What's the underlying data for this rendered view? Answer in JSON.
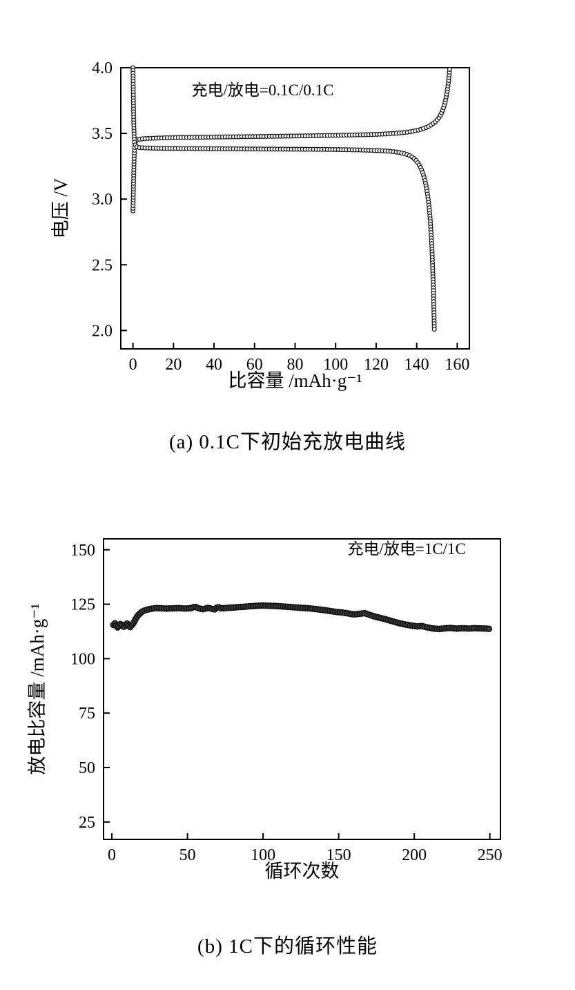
{
  "page": {
    "background": "#ffffff",
    "text_color": "#000000"
  },
  "chart_data": [
    {
      "id": "chart-a",
      "type": "scatter",
      "title": "",
      "caption": "(a) 0.1C下初始充放电曲线",
      "annotation": {
        "text": "充电/放电=0.1C/0.1C",
        "x": 64,
        "y": 3.79
      },
      "xlabel": "比容量  /mAh·g⁻¹",
      "ylabel": "电压 /V",
      "xlim": [
        -6,
        166
      ],
      "ylim": [
        1.86,
        4.0
      ],
      "grid": false,
      "legend": "none",
      "axis_color": "#000000",
      "xticks": {
        "values": [
          0,
          20,
          40,
          60,
          80,
          100,
          120,
          140,
          160
        ],
        "labels": [
          "0",
          "20",
          "40",
          "60",
          "80",
          "100",
          "120",
          "140",
          "160"
        ]
      },
      "yticks": {
        "values": [
          2.0,
          2.5,
          3.0,
          3.5,
          4.0
        ],
        "labels": [
          "2.0",
          "2.5",
          "3.0",
          "3.5",
          "4.0"
        ]
      },
      "series": [
        {
          "name": "charge-0.1C",
          "marker": "open-circle",
          "color": "#161616",
          "marker_fill": "#ffffff",
          "points": [
            [
              0,
              2.91
            ],
            [
              0.2,
              3.06
            ],
            [
              0.4,
              3.2
            ],
            [
              0.6,
              3.32
            ],
            [
              0.9,
              3.4
            ],
            [
              1.3,
              3.44
            ],
            [
              2,
              3.452
            ],
            [
              4,
              3.458
            ],
            [
              8,
              3.462
            ],
            [
              15,
              3.466
            ],
            [
              25,
              3.469
            ],
            [
              35,
              3.471
            ],
            [
              45,
              3.473
            ],
            [
              55,
              3.475
            ],
            [
              65,
              3.477
            ],
            [
              75,
              3.479
            ],
            [
              85,
              3.481
            ],
            [
              95,
              3.484
            ],
            [
              105,
              3.487
            ],
            [
              115,
              3.49
            ],
            [
              122,
              3.494
            ],
            [
              128,
              3.499
            ],
            [
              133,
              3.505
            ],
            [
              137,
              3.513
            ],
            [
              140,
              3.522
            ],
            [
              143,
              3.535
            ],
            [
              145.5,
              3.55
            ],
            [
              147.5,
              3.568
            ],
            [
              149.5,
              3.592
            ],
            [
              151,
              3.62
            ],
            [
              152.3,
              3.655
            ],
            [
              153.4,
              3.7
            ],
            [
              154.3,
              3.755
            ],
            [
              155,
              3.815
            ],
            [
              155.6,
              3.88
            ],
            [
              156,
              3.94
            ],
            [
              156.3,
              4.0
            ]
          ]
        },
        {
          "name": "discharge-0.1C",
          "marker": "open-circle",
          "color": "#161616",
          "marker_fill": "#ffffff",
          "points": [
            [
              0,
              4.0
            ],
            [
              0.1,
              3.88
            ],
            [
              0.25,
              3.72
            ],
            [
              0.4,
              3.58
            ],
            [
              0.6,
              3.47
            ],
            [
              0.9,
              3.42
            ],
            [
              1.5,
              3.4
            ],
            [
              3,
              3.392
            ],
            [
              8,
              3.388
            ],
            [
              15,
              3.386
            ],
            [
              25,
              3.385
            ],
            [
              35,
              3.384
            ],
            [
              45,
              3.383
            ],
            [
              55,
              3.382
            ],
            [
              65,
              3.381
            ],
            [
              75,
              3.38
            ],
            [
              85,
              3.379
            ],
            [
              95,
              3.378
            ],
            [
              105,
              3.376
            ],
            [
              112,
              3.374
            ],
            [
              118,
              3.371
            ],
            [
              124,
              3.367
            ],
            [
              128,
              3.362
            ],
            [
              131,
              3.356
            ],
            [
              134,
              3.346
            ],
            [
              136,
              3.335
            ],
            [
              138,
              3.318
            ],
            [
              139.5,
              3.298
            ],
            [
              141,
              3.268
            ],
            [
              142.2,
              3.232
            ],
            [
              143.2,
              3.19
            ],
            [
              144.1,
              3.14
            ],
            [
              144.9,
              3.08
            ],
            [
              145.6,
              3.01
            ],
            [
              146.2,
              2.93
            ],
            [
              146.7,
              2.84
            ],
            [
              147.1,
              2.74
            ],
            [
              147.5,
              2.63
            ],
            [
              147.8,
              2.51
            ],
            [
              148.1,
              2.38
            ],
            [
              148.35,
              2.25
            ],
            [
              148.55,
              2.12
            ],
            [
              148.7,
              2.0
            ]
          ]
        }
      ]
    },
    {
      "id": "chart-b",
      "type": "scatter",
      "title": "",
      "caption": "(b) 1C下的循环性能",
      "annotation": {
        "text": "充电/放电=1C/1C",
        "x": 195,
        "y": 148
      },
      "xlabel": "循环次数",
      "ylabel": "放电比容量  /mAh·g⁻¹",
      "xlim": [
        -5.5,
        257
      ],
      "ylim": [
        17,
        155
      ],
      "grid": false,
      "legend": "none",
      "axis_color": "#000000",
      "xticks": {
        "values": [
          0,
          50,
          100,
          150,
          200,
          250
        ],
        "labels": [
          "0",
          "50",
          "100",
          "150",
          "200",
          "250"
        ]
      },
      "yticks": {
        "values": [
          25,
          50,
          75,
          100,
          125,
          150
        ],
        "labels": [
          "25",
          "50",
          "75",
          "100",
          "125",
          "150"
        ]
      },
      "series": [
        {
          "name": "discharge-capacity-1C",
          "marker": "open-circle",
          "color": "#111111",
          "marker_fill": "#3a3a3a",
          "points": [
            [
              1,
              115.5
            ],
            [
              2,
              116.3
            ],
            [
              3,
              114.8
            ],
            [
              4,
              114.2
            ],
            [
              5,
              115.6
            ],
            [
              6,
              116.0
            ],
            [
              7,
              115.2
            ],
            [
              8,
              114.6
            ],
            [
              9,
              115.8
            ],
            [
              10,
              116.2
            ],
            [
              11,
              115.0
            ],
            [
              12,
              114.4
            ],
            [
              13,
              115.2
            ],
            [
              14,
              116.0
            ],
            [
              15,
              117.2
            ],
            [
              16,
              118.6
            ],
            [
              17,
              119.6
            ],
            [
              18,
              120.4
            ],
            [
              19,
              121.0
            ],
            [
              20,
              121.6
            ],
            [
              22,
              122.2
            ],
            [
              24,
              122.6
            ],
            [
              26,
              122.9
            ],
            [
              28,
              123.1
            ],
            [
              30,
              123.2
            ],
            [
              33,
              123.1
            ],
            [
              36,
              123.0
            ],
            [
              40,
              123.1
            ],
            [
              44,
              123.2
            ],
            [
              48,
              123.0
            ],
            [
              52,
              123.1
            ],
            [
              55,
              123.9
            ],
            [
              57,
              123.2
            ],
            [
              60,
              122.7
            ],
            [
              62,
              123.0
            ],
            [
              64,
              123.4
            ],
            [
              66,
              122.8
            ],
            [
              68,
              122.6
            ],
            [
              70,
              123.8
            ],
            [
              72,
              123.1
            ],
            [
              75,
              123.2
            ],
            [
              78,
              123.4
            ],
            [
              81,
              123.5
            ],
            [
              84,
              123.7
            ],
            [
              87,
              123.8
            ],
            [
              90,
              124.0
            ],
            [
              93,
              124.1
            ],
            [
              96,
              124.3
            ],
            [
              100,
              124.4
            ],
            [
              104,
              124.3
            ],
            [
              108,
              124.2
            ],
            [
              112,
              124.0
            ],
            [
              116,
              123.8
            ],
            [
              120,
              123.6
            ],
            [
              124,
              123.4
            ],
            [
              128,
              123.2
            ],
            [
              132,
              123.0
            ],
            [
              136,
              122.7
            ],
            [
              140,
              122.3
            ],
            [
              144,
              121.9
            ],
            [
              148,
              121.5
            ],
            [
              152,
              121.2
            ],
            [
              156,
              120.8
            ],
            [
              160,
              120.3
            ],
            [
              164,
              120.6
            ],
            [
              167,
              120.9
            ],
            [
              170,
              120.2
            ],
            [
              174,
              119.3
            ],
            [
              178,
              118.6
            ],
            [
              182,
              117.9
            ],
            [
              186,
              117.1
            ],
            [
              190,
              116.3
            ],
            [
              194,
              115.7
            ],
            [
              198,
              115.2
            ],
            [
              202,
              114.8
            ],
            [
              205,
              115.0
            ],
            [
              208,
              114.4
            ],
            [
              212,
              113.9
            ],
            [
              216,
              113.6
            ],
            [
              220,
              113.9
            ],
            [
              224,
              114.1
            ],
            [
              228,
              113.8
            ],
            [
              232,
              114.0
            ],
            [
              236,
              113.8
            ],
            [
              240,
              114.0
            ],
            [
              244,
              113.9
            ],
            [
              248,
              113.8
            ],
            [
              250,
              113.6
            ]
          ]
        }
      ]
    }
  ]
}
